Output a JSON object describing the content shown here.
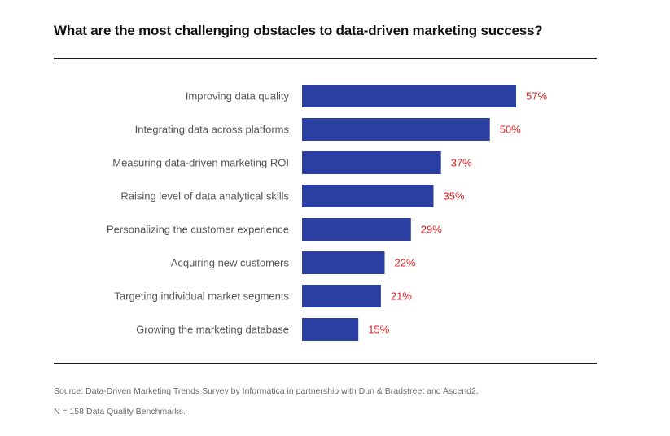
{
  "header": {
    "title": "What are the most challenging obstacles to data-driven marketing success?"
  },
  "chart_data": {
    "type": "bar",
    "orientation": "horizontal",
    "title": "What are the most challenging obstacles to data-driven marketing success?",
    "categories": [
      "Improving data quality",
      "Integrating data across platforms",
      "Measuring data-driven marketing ROI",
      "Raising level of data analytical skills",
      "Personalizing the customer experience",
      "Acquiring new customers",
      "Targeting individual market segments",
      "Growing the marketing database"
    ],
    "values": [
      57,
      50,
      37,
      35,
      29,
      22,
      21,
      15
    ],
    "value_labels": [
      "57%",
      "50%",
      "37%",
      "35%",
      "29%",
      "22%",
      "21%",
      "15%"
    ],
    "unit": "%",
    "xlim": [
      0,
      100
    ],
    "xlabel": "",
    "ylabel": "",
    "grid": false,
    "legend": "none",
    "bar_color": "#2b3fa3",
    "label_color": "#e02020"
  },
  "footer": {
    "source": "Source: Data-Driven Marketing Trends Survey by Informatica in partnership with Dun & Bradstreet and Ascend2.",
    "note": "N = 158 Data Quality Benchmarks."
  }
}
